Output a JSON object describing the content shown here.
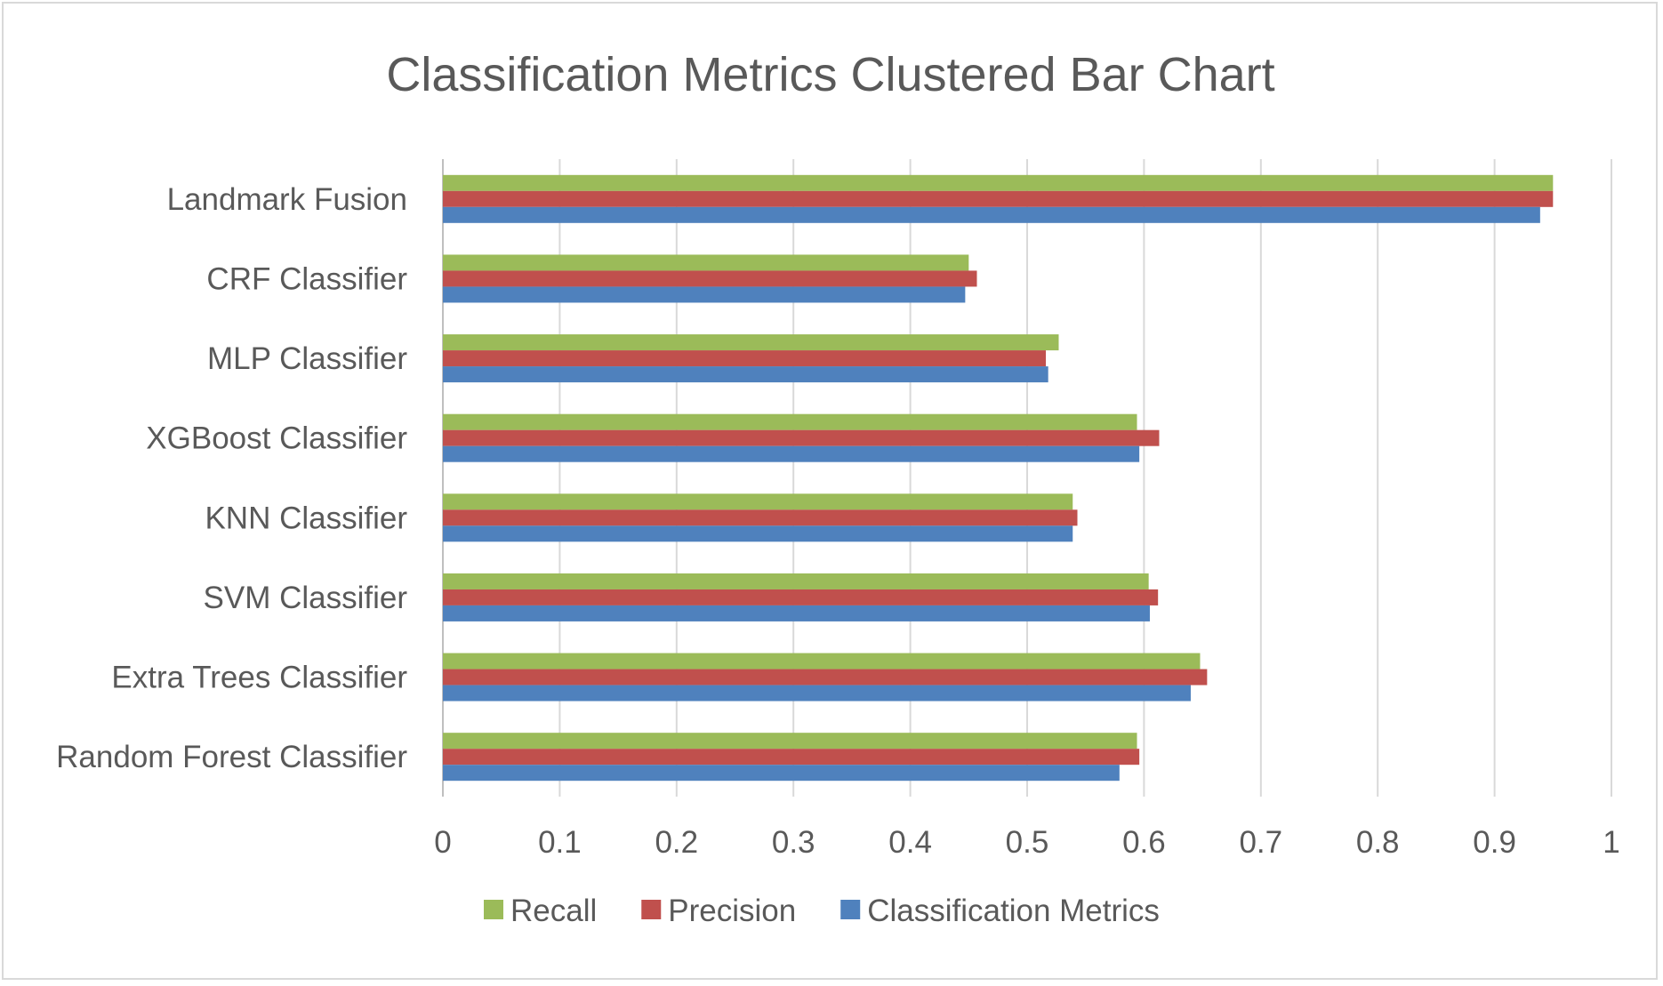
{
  "chart_data": {
    "type": "bar",
    "orientation": "horizontal",
    "title": "Classification Metrics Clustered Bar Chart",
    "xlabel": "",
    "ylabel": "",
    "xlim": [
      0,
      1
    ],
    "x_ticks": [
      "0",
      "0.1",
      "0.2",
      "0.3",
      "0.4",
      "0.5",
      "0.6",
      "0.7",
      "0.8",
      "0.9",
      "1"
    ],
    "grid": "vertical",
    "legend_position": "bottom",
    "categories": [
      "Landmark Fusion",
      "CRF Classifier",
      "MLP Classifier",
      "XGBoost Classifier",
      "KNN Classifier",
      "SVM Classifier",
      "Extra Trees Classifier",
      "Random Forest Classifier"
    ],
    "series": [
      {
        "name": "Recall",
        "color": "#9bbb59",
        "values": [
          0.95,
          0.45,
          0.527,
          0.594,
          0.539,
          0.604,
          0.648,
          0.594
        ]
      },
      {
        "name": "Precision",
        "color": "#c0504d",
        "values": [
          0.95,
          0.457,
          0.516,
          0.613,
          0.543,
          0.612,
          0.654,
          0.596
        ]
      },
      {
        "name": "Classification Metrics",
        "color": "#4f81bd",
        "values": [
          0.939,
          0.447,
          0.518,
          0.596,
          0.539,
          0.605,
          0.64,
          0.579
        ]
      }
    ]
  }
}
